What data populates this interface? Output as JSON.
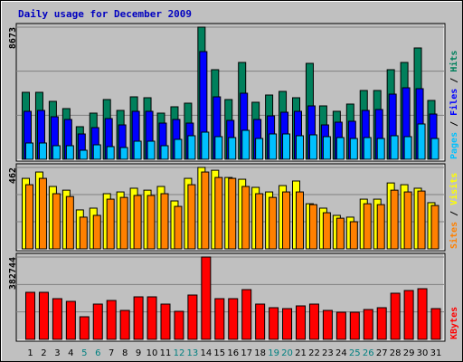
{
  "chart_data": [
    {
      "type": "bar",
      "title": "Daily usage for December 2009",
      "legend_separator": " / ",
      "ylim": [
        0,
        8673
      ],
      "yticks": [
        8673
      ],
      "series": [
        {
          "name": "Pages",
          "color": "#00c0ff",
          "values": [
            1069,
            1069,
            891,
            891,
            594,
            950,
            832,
            772,
            1188,
            1188,
            891,
            1307,
            1545,
            1782,
            1485,
            1426,
            1901,
            1366,
            1663,
            1663,
            1545,
            1604,
            1485,
            1426,
            1366,
            1426,
            1366,
            1545,
            1485,
            2317,
            1366
          ]
        },
        {
          "name": "Files",
          "color": "#0000ff",
          "values": [
            3149,
            3208,
            2792,
            2614,
            1663,
            2079,
            2673,
            2257,
            3149,
            3149,
            2376,
            2614,
            2376,
            7069,
            4099,
            2554,
            4337,
            2614,
            2851,
            3089,
            3149,
            3505,
            2257,
            2436,
            2495,
            3208,
            3267,
            4277,
            4693,
            4634,
            2970
          ]
        },
        {
          "name": "Hits",
          "color": "#00805c",
          "values": [
            4396,
            4396,
            3802,
            3327,
            2139,
            3030,
            3921,
            3208,
            4099,
            4040,
            3030,
            3446,
            3683,
            8673,
            5881,
            3921,
            6356,
            3743,
            4218,
            4455,
            4040,
            6297,
            3505,
            3149,
            3624,
            4515,
            4515,
            5881,
            6356,
            7307,
            3862
          ]
        }
      ]
    },
    {
      "type": "bar",
      "legend_separator": " / ",
      "ylim": [
        0,
        462
      ],
      "yticks": [
        462
      ],
      "series": [
        {
          "name": "Sites",
          "color": "#ff8000",
          "values": [
            364,
            400,
            313,
            297,
            180,
            190,
            282,
            292,
            303,
            303,
            313,
            241,
            364,
            436,
            405,
            400,
            354,
            313,
            292,
            323,
            323,
            251,
            205,
            174,
            154,
            256,
            251,
            333,
            323,
            328,
            246
          ]
        },
        {
          "name": "Visits",
          "color": "#ffff00",
          "values": [
            400,
            436,
            354,
            333,
            221,
            231,
            313,
            323,
            344,
            333,
            354,
            272,
            400,
            462,
            446,
            405,
            395,
            349,
            323,
            359,
            385,
            256,
            231,
            190,
            180,
            282,
            282,
            374,
            364,
            344,
            262
          ]
        }
      ]
    },
    {
      "type": "bar",
      "ylim": [
        0,
        382744
      ],
      "yticks": [
        382744
      ],
      "categories": [
        "1",
        "2",
        "3",
        "4",
        "5",
        "6",
        "7",
        "8",
        "9",
        "10",
        "11",
        "12",
        "13",
        "14",
        "15",
        "16",
        "17",
        "18",
        "19",
        "20",
        "21",
        "22",
        "23",
        "24",
        "25",
        "26",
        "27",
        "28",
        "29",
        "30",
        "31"
      ],
      "category_colors": [
        "#000000",
        "#000000",
        "#000000",
        "#000000",
        "#008080",
        "#008080",
        "#000000",
        "#000000",
        "#000000",
        "#000000",
        "#000000",
        "#008080",
        "#008080",
        "#000000",
        "#000000",
        "#000000",
        "#000000",
        "#000000",
        "#008080",
        "#008080",
        "#000000",
        "#000000",
        "#000000",
        "#000000",
        "#008080",
        "#008080",
        "#000000",
        "#000000",
        "#000000",
        "#000000",
        "#000000"
      ],
      "series": [
        {
          "name": "KBytes",
          "color": "#ff0000",
          "values": [
            218709,
            218709,
            189270,
            176652,
            105150,
            164034,
            180858,
            134592,
            197682,
            197682,
            164034,
            130386,
            206094,
            382744,
            189270,
            189270,
            231330,
            164034,
            147210,
            143004,
            155622,
            164034,
            134592,
            126180,
            126180,
            138798,
            147210,
            214506,
            227124,
            235536,
            143004
          ]
        }
      ]
    }
  ]
}
